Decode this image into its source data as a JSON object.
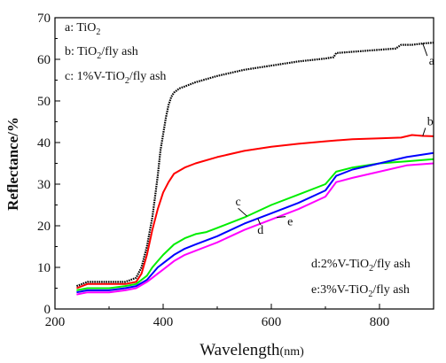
{
  "chart_data": {
    "type": "line",
    "xlabel": "Wavelength",
    "xlabel_unit": "(nm)",
    "ylabel": "Reflectance/%",
    "xlim": [
      200,
      900
    ],
    "ylim": [
      0,
      70
    ],
    "xticks": [
      "200",
      "400",
      "600",
      "800"
    ],
    "yticks": [
      "0",
      "10",
      "20",
      "30",
      "40",
      "50",
      "60",
      "70"
    ],
    "legend": [
      {
        "key": "a:",
        "text": "TiO",
        "sub": "2",
        "tail": ""
      },
      {
        "key": "b:",
        "text": "TiO",
        "sub": "2",
        "tail": "/fly ash"
      },
      {
        "key": "c:",
        "text": "1%V-TiO",
        "sub": "2",
        "tail": "/fly ash"
      },
      {
        "key": "d:",
        "text": "2%V-TiO",
        "sub": "2",
        "tail": "/fly ash"
      },
      {
        "key": "e:",
        "text": "3%V-TiO",
        "sub": "2",
        "tail": "/fly ash"
      }
    ],
    "series": [
      {
        "label": "a",
        "color": "#000000",
        "style": "dotted",
        "x": [
          240,
          260,
          300,
          330,
          350,
          360,
          370,
          380,
          385,
          390,
          395,
          400,
          405,
          410,
          415,
          420,
          430,
          440,
          460,
          500,
          550,
          600,
          650,
          700,
          715,
          720,
          750,
          800,
          830,
          840,
          860,
          880,
          900
        ],
        "y": [
          5.5,
          6.5,
          6.5,
          6.5,
          7.5,
          10,
          15,
          22,
          27,
          32,
          38,
          42,
          46,
          49,
          51,
          52,
          53,
          53.5,
          54.5,
          56,
          57.5,
          58.5,
          59.5,
          60.2,
          60.5,
          61.5,
          61.8,
          62.3,
          62.6,
          63.5,
          63.5,
          63.8,
          64
        ]
      },
      {
        "label": "b",
        "color": "#ff0000",
        "style": "solid",
        "x": [
          240,
          260,
          300,
          330,
          350,
          360,
          370,
          380,
          390,
          400,
          410,
          420,
          440,
          460,
          500,
          550,
          600,
          650,
          700,
          750,
          800,
          840,
          860,
          880,
          900
        ],
        "y": [
          5,
          6,
          6,
          6,
          6.5,
          8.5,
          13,
          19,
          24,
          28,
          30.5,
          32.5,
          34,
          35,
          36.5,
          38,
          39,
          39.7,
          40.3,
          40.8,
          41,
          41.2,
          41.8,
          41.6,
          41.5
        ]
      },
      {
        "label": "c",
        "color": "#00ee00",
        "style": "solid",
        "x": [
          240,
          260,
          300,
          330,
          350,
          370,
          380,
          390,
          400,
          420,
          440,
          460,
          480,
          500,
          550,
          600,
          650,
          700,
          720,
          750,
          800,
          850,
          900
        ],
        "y": [
          4.5,
          5,
          5,
          5.5,
          6,
          8,
          10,
          11.5,
          13,
          15.5,
          17,
          18,
          18.5,
          19.5,
          22,
          25,
          27.5,
          30,
          33,
          34,
          35,
          35.5,
          36
        ]
      },
      {
        "label": "d",
        "color": "#0000ff",
        "style": "solid",
        "x": [
          240,
          260,
          300,
          330,
          350,
          370,
          380,
          390,
          400,
          420,
          440,
          460,
          480,
          500,
          550,
          600,
          650,
          700,
          720,
          750,
          800,
          850,
          900
        ],
        "y": [
          4,
          4.5,
          4.5,
          5,
          5.5,
          7,
          8.5,
          10,
          11,
          13,
          14.5,
          15.5,
          16.5,
          17.5,
          20.5,
          23,
          25.5,
          28.5,
          32,
          33.5,
          35,
          36.5,
          37.5
        ]
      },
      {
        "label": "e",
        "color": "#ff00ff",
        "style": "solid",
        "x": [
          240,
          260,
          300,
          330,
          350,
          370,
          380,
          390,
          400,
          420,
          440,
          460,
          480,
          500,
          550,
          600,
          650,
          700,
          720,
          750,
          800,
          850,
          900
        ],
        "y": [
          3.5,
          4,
          4,
          4.5,
          5,
          6.5,
          7.5,
          8.5,
          9.5,
          11.5,
          13,
          14,
          15,
          16,
          19,
          21.5,
          24,
          27,
          30.5,
          31.5,
          33,
          34.5,
          35
        ]
      }
    ],
    "labels": [
      {
        "text": "a",
        "series": "a",
        "x": 880
      },
      {
        "text": "b",
        "series": "b",
        "x": 880
      },
      {
        "text": "c",
        "series": "c",
        "x": 555
      },
      {
        "text": "d",
        "series": "d",
        "x": 575
      },
      {
        "text": "e",
        "series": "e",
        "x": 610
      }
    ]
  }
}
